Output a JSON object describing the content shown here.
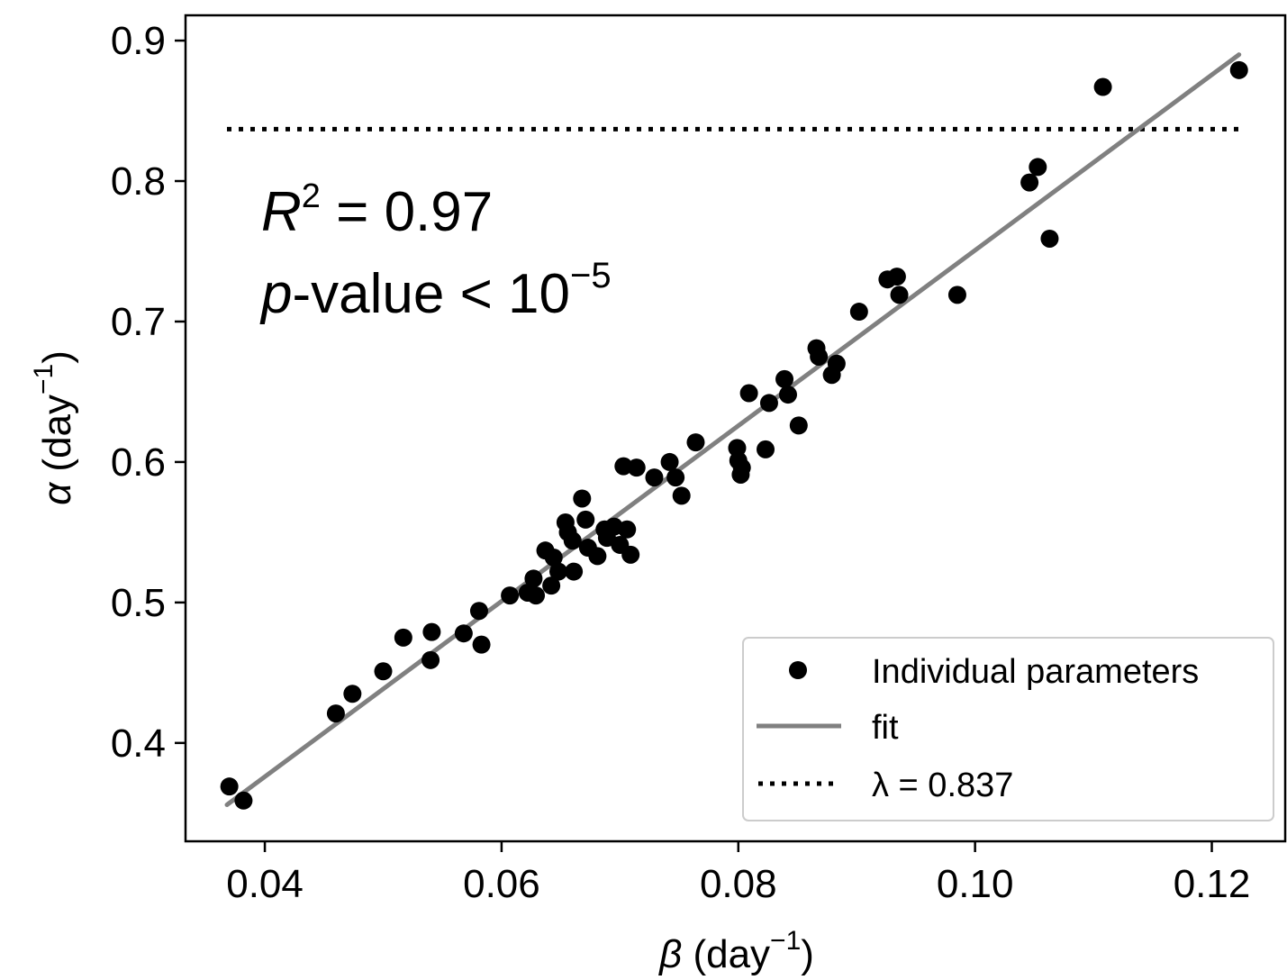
{
  "chart_data": {
    "type": "scatter",
    "x_axis": {
      "symbol": "β",
      "label": "(day",
      "exponent": "−1",
      "close": ")",
      "range": [
        0.0333,
        0.1262
      ],
      "ticks": [
        0.04,
        0.06,
        0.08,
        0.1,
        0.12
      ],
      "tick_labels": [
        "0.04",
        "0.06",
        "0.08",
        "0.10",
        "0.12"
      ]
    },
    "y_axis": {
      "symbol": "α",
      "label": "(day",
      "exponent": "−1",
      "close": ")",
      "range": [
        0.33,
        0.918
      ],
      "ticks": [
        0.4,
        0.5,
        0.6,
        0.7,
        0.8,
        0.9
      ],
      "tick_labels": [
        "0.4",
        "0.5",
        "0.6",
        "0.7",
        "0.8",
        "0.9"
      ]
    },
    "grid": false,
    "series": [
      {
        "name": "Individual parameters",
        "kind": "scatter",
        "color": "#000000",
        "points": [
          [
            0.037,
            0.369
          ],
          [
            0.0382,
            0.359
          ],
          [
            0.046,
            0.421
          ],
          [
            0.0474,
            0.435
          ],
          [
            0.05,
            0.451
          ],
          [
            0.0517,
            0.475
          ],
          [
            0.054,
            0.459
          ],
          [
            0.0541,
            0.479
          ],
          [
            0.0568,
            0.478
          ],
          [
            0.0581,
            0.494
          ],
          [
            0.0583,
            0.47
          ],
          [
            0.0607,
            0.505
          ],
          [
            0.0622,
            0.507
          ],
          [
            0.0627,
            0.517
          ],
          [
            0.0629,
            0.505
          ],
          [
            0.0637,
            0.537
          ],
          [
            0.0642,
            0.512
          ],
          [
            0.0644,
            0.532
          ],
          [
            0.0648,
            0.522
          ],
          [
            0.0654,
            0.557
          ],
          [
            0.0656,
            0.55
          ],
          [
            0.066,
            0.544
          ],
          [
            0.0661,
            0.522
          ],
          [
            0.0668,
            0.574
          ],
          [
            0.0671,
            0.559
          ],
          [
            0.0673,
            0.539
          ],
          [
            0.0681,
            0.533
          ],
          [
            0.0687,
            0.552
          ],
          [
            0.0689,
            0.546
          ],
          [
            0.0695,
            0.554
          ],
          [
            0.07,
            0.541
          ],
          [
            0.0703,
            0.597
          ],
          [
            0.0706,
            0.552
          ],
          [
            0.0709,
            0.534
          ],
          [
            0.0714,
            0.596
          ],
          [
            0.0729,
            0.589
          ],
          [
            0.0742,
            0.6
          ],
          [
            0.0747,
            0.589
          ],
          [
            0.0752,
            0.576
          ],
          [
            0.0764,
            0.614
          ],
          [
            0.0799,
            0.61
          ],
          [
            0.08,
            0.601
          ],
          [
            0.0802,
            0.591
          ],
          [
            0.0803,
            0.596
          ],
          [
            0.0809,
            0.649
          ],
          [
            0.0823,
            0.609
          ],
          [
            0.0826,
            0.642
          ],
          [
            0.0839,
            0.659
          ],
          [
            0.0842,
            0.648
          ],
          [
            0.0851,
            0.626
          ],
          [
            0.0866,
            0.681
          ],
          [
            0.0868,
            0.675
          ],
          [
            0.0879,
            0.662
          ],
          [
            0.0883,
            0.67
          ],
          [
            0.0902,
            0.707
          ],
          [
            0.0926,
            0.73
          ],
          [
            0.0934,
            0.732
          ],
          [
            0.0936,
            0.719
          ],
          [
            0.0985,
            0.719
          ],
          [
            0.1046,
            0.799
          ],
          [
            0.1053,
            0.81
          ],
          [
            0.1063,
            0.759
          ],
          [
            0.1108,
            0.867
          ],
          [
            0.1223,
            0.879
          ]
        ]
      },
      {
        "name": "fit",
        "kind": "line",
        "color": "#808080",
        "points": [
          [
            0.0368,
            0.356
          ],
          [
            0.1223,
            0.89
          ]
        ]
      },
      {
        "name": "λ = 0.837",
        "kind": "hline",
        "color": "#000000",
        "y": 0.837,
        "x_span": [
          0.0368,
          0.1226
        ]
      }
    ],
    "legend": {
      "placement": "lower-right",
      "entries": [
        {
          "name": "Individual parameters",
          "marker": "dot",
          "color": "#000000"
        },
        {
          "name": "fit",
          "marker": "solid-line",
          "color": "#808080"
        },
        {
          "name": "λ = 0.837",
          "marker": "dotted-line",
          "color": "#000000"
        }
      ]
    },
    "annotations": {
      "r2": {
        "lhs": "R",
        "sup": "2",
        "rest": " = 0.97"
      },
      "pvalue": {
        "lhs": "p",
        "rest": "-value < 10",
        "sup": "−5"
      }
    }
  }
}
